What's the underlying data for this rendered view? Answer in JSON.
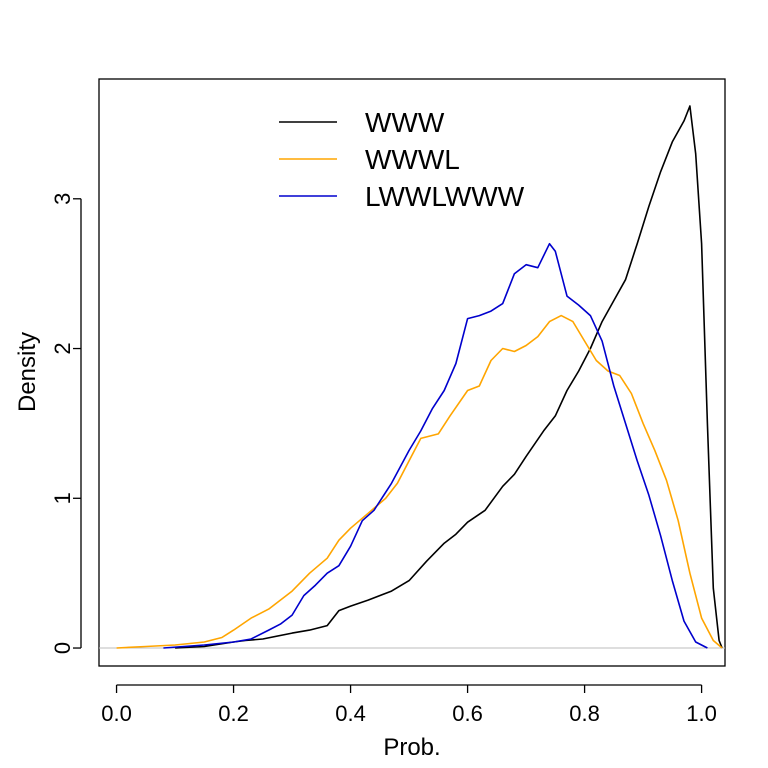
{
  "chart_data": {
    "type": "line",
    "title": "",
    "xlabel": "Prob.",
    "ylabel": "Density",
    "xlim": [
      -0.03,
      1.04
    ],
    "ylim": [
      -0.12,
      3.8
    ],
    "xticks": [
      "0.0",
      "0.2",
      "0.4",
      "0.6",
      "0.8",
      "1.0"
    ],
    "xtick_values": [
      0,
      0.2,
      0.4,
      0.6,
      0.8,
      1.0
    ],
    "yticks": [
      "0",
      "1",
      "2",
      "3"
    ],
    "ytick_values": [
      0,
      1,
      2,
      3
    ],
    "baseline": {
      "y": 0,
      "color": "#bebebe"
    },
    "legend": {
      "placement": "top-center"
    },
    "series": [
      {
        "name": "WWW",
        "color": "#000000",
        "points": [
          [
            0.1,
            0.0
          ],
          [
            0.15,
            0.01
          ],
          [
            0.2,
            0.04
          ],
          [
            0.22,
            0.05
          ],
          [
            0.25,
            0.06
          ],
          [
            0.3,
            0.1
          ],
          [
            0.33,
            0.12
          ],
          [
            0.36,
            0.15
          ],
          [
            0.38,
            0.25
          ],
          [
            0.4,
            0.28
          ],
          [
            0.43,
            0.32
          ],
          [
            0.47,
            0.38
          ],
          [
            0.5,
            0.45
          ],
          [
            0.53,
            0.58
          ],
          [
            0.56,
            0.7
          ],
          [
            0.58,
            0.76
          ],
          [
            0.6,
            0.84
          ],
          [
            0.63,
            0.92
          ],
          [
            0.66,
            1.08
          ],
          [
            0.68,
            1.16
          ],
          [
            0.7,
            1.28
          ],
          [
            0.73,
            1.45
          ],
          [
            0.75,
            1.55
          ],
          [
            0.77,
            1.72
          ],
          [
            0.79,
            1.85
          ],
          [
            0.81,
            2.0
          ],
          [
            0.83,
            2.18
          ],
          [
            0.85,
            2.32
          ],
          [
            0.87,
            2.46
          ],
          [
            0.89,
            2.7
          ],
          [
            0.91,
            2.95
          ],
          [
            0.93,
            3.18
          ],
          [
            0.95,
            3.38
          ],
          [
            0.97,
            3.52
          ],
          [
            0.98,
            3.62
          ],
          [
            0.99,
            3.3
          ],
          [
            1.0,
            2.7
          ],
          [
            1.01,
            1.5
          ],
          [
            1.02,
            0.4
          ],
          [
            1.03,
            0.05
          ],
          [
            1.035,
            0.0
          ]
        ]
      },
      {
        "name": "WWWL",
        "color": "#ffa500",
        "points": [
          [
            0.0,
            0.0
          ],
          [
            0.05,
            0.01
          ],
          [
            0.1,
            0.02
          ],
          [
            0.15,
            0.04
          ],
          [
            0.18,
            0.07
          ],
          [
            0.2,
            0.12
          ],
          [
            0.23,
            0.2
          ],
          [
            0.26,
            0.26
          ],
          [
            0.3,
            0.38
          ],
          [
            0.33,
            0.5
          ],
          [
            0.36,
            0.6
          ],
          [
            0.38,
            0.72
          ],
          [
            0.4,
            0.8
          ],
          [
            0.43,
            0.9
          ],
          [
            0.46,
            1.0
          ],
          [
            0.48,
            1.1
          ],
          [
            0.5,
            1.25
          ],
          [
            0.52,
            1.4
          ],
          [
            0.55,
            1.43
          ],
          [
            0.57,
            1.55
          ],
          [
            0.6,
            1.72
          ],
          [
            0.62,
            1.75
          ],
          [
            0.64,
            1.92
          ],
          [
            0.66,
            2.0
          ],
          [
            0.68,
            1.98
          ],
          [
            0.7,
            2.02
          ],
          [
            0.72,
            2.08
          ],
          [
            0.74,
            2.18
          ],
          [
            0.76,
            2.22
          ],
          [
            0.78,
            2.18
          ],
          [
            0.8,
            2.05
          ],
          [
            0.82,
            1.92
          ],
          [
            0.84,
            1.85
          ],
          [
            0.86,
            1.82
          ],
          [
            0.88,
            1.7
          ],
          [
            0.9,
            1.5
          ],
          [
            0.92,
            1.32
          ],
          [
            0.94,
            1.12
          ],
          [
            0.96,
            0.85
          ],
          [
            0.98,
            0.5
          ],
          [
            1.0,
            0.2
          ],
          [
            1.02,
            0.05
          ],
          [
            1.035,
            0.0
          ]
        ]
      },
      {
        "name": "LWWLWWW",
        "color": "#0000cd",
        "points": [
          [
            0.08,
            0.0
          ],
          [
            0.15,
            0.02
          ],
          [
            0.2,
            0.04
          ],
          [
            0.23,
            0.06
          ],
          [
            0.26,
            0.12
          ],
          [
            0.28,
            0.16
          ],
          [
            0.3,
            0.22
          ],
          [
            0.32,
            0.35
          ],
          [
            0.34,
            0.42
          ],
          [
            0.36,
            0.5
          ],
          [
            0.38,
            0.55
          ],
          [
            0.4,
            0.68
          ],
          [
            0.42,
            0.85
          ],
          [
            0.44,
            0.92
          ],
          [
            0.47,
            1.1
          ],
          [
            0.5,
            1.32
          ],
          [
            0.52,
            1.45
          ],
          [
            0.54,
            1.6
          ],
          [
            0.56,
            1.72
          ],
          [
            0.58,
            1.9
          ],
          [
            0.6,
            2.2
          ],
          [
            0.62,
            2.22
          ],
          [
            0.64,
            2.25
          ],
          [
            0.66,
            2.3
          ],
          [
            0.68,
            2.5
          ],
          [
            0.7,
            2.56
          ],
          [
            0.72,
            2.54
          ],
          [
            0.74,
            2.7
          ],
          [
            0.75,
            2.65
          ],
          [
            0.77,
            2.35
          ],
          [
            0.79,
            2.29
          ],
          [
            0.81,
            2.22
          ],
          [
            0.83,
            2.05
          ],
          [
            0.85,
            1.75
          ],
          [
            0.87,
            1.5
          ],
          [
            0.89,
            1.25
          ],
          [
            0.91,
            1.02
          ],
          [
            0.93,
            0.75
          ],
          [
            0.95,
            0.45
          ],
          [
            0.97,
            0.18
          ],
          [
            0.99,
            0.04
          ],
          [
            1.01,
            0.0
          ]
        ]
      }
    ]
  }
}
